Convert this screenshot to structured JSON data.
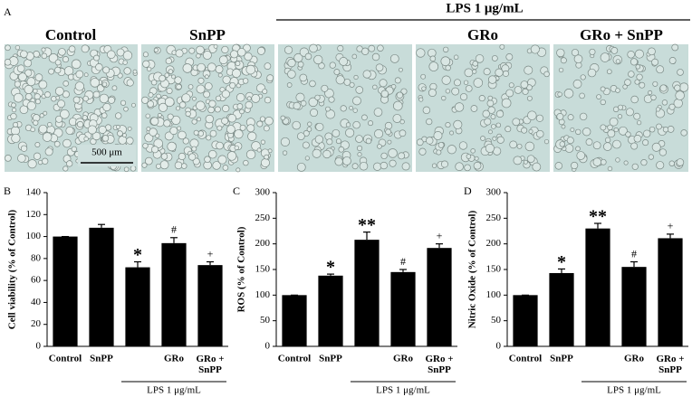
{
  "panel_a": {
    "label": "A",
    "group_label": "LPS 1 μg/mL",
    "titles": [
      "Control",
      "SnPP",
      "GRo",
      "GRo + SnPP"
    ],
    "scale_bar": "500 μm"
  },
  "chart_data": [
    {
      "type": "bar",
      "panel_label": "B",
      "ylabel": "Cell viability (% of Control)",
      "categories": [
        "Control",
        "SnPP",
        null,
        "GRo",
        "GRo +\nSnPP"
      ],
      "values": [
        100,
        108,
        72,
        94,
        74
      ],
      "errors": [
        0,
        3,
        5,
        5,
        3
      ],
      "annotations": [
        null,
        null,
        "*",
        "#",
        "+"
      ],
      "ylim": [
        0,
        140
      ],
      "yticks": [
        0,
        20,
        40,
        60,
        80,
        100,
        120,
        140
      ],
      "color": "#000000",
      "group_label": "LPS 1 μg/mL"
    },
    {
      "type": "bar",
      "panel_label": "C",
      "ylabel": "ROS (% of Control)",
      "categories": [
        "Control",
        "SnPP",
        null,
        "GRo",
        "GRo +\nSnPP"
      ],
      "values": [
        100,
        138,
        208,
        145,
        192
      ],
      "errors": [
        0,
        3,
        15,
        5,
        8
      ],
      "annotations": [
        null,
        "*",
        "**",
        "#",
        "+"
      ],
      "ylim": [
        0,
        300
      ],
      "yticks": [
        0,
        50,
        100,
        150,
        200,
        250,
        300
      ],
      "color": "#000000",
      "group_label": "LPS 1 μg/mL"
    },
    {
      "type": "bar",
      "panel_label": "D",
      "ylabel": "Nitric Oxide (% of Control)",
      "categories": [
        "Control",
        "SnPP",
        null,
        "GRo",
        "GRo +\nSnPP"
      ],
      "values": [
        100,
        143,
        230,
        155,
        211
      ],
      "errors": [
        0,
        8,
        10,
        10,
        8
      ],
      "annotations": [
        null,
        "*",
        "**",
        "#",
        "+"
      ],
      "ylim": [
        0,
        300
      ],
      "yticks": [
        0,
        50,
        100,
        150,
        200,
        250,
        300
      ],
      "color": "#000000",
      "group_label": "LPS 1 μg/mL"
    }
  ]
}
